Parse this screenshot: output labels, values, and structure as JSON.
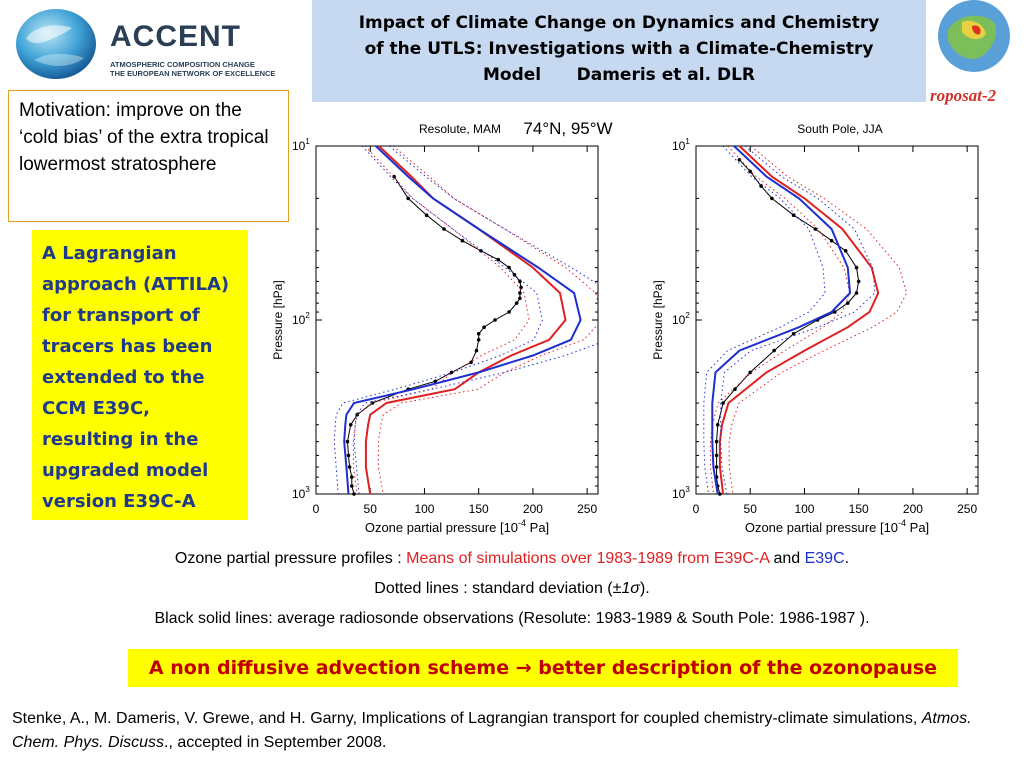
{
  "logo": {
    "brand": "ACCENT",
    "tagline1": "ATMOSPHERIC COMPOSITION CHANGE",
    "tagline2": "THE EUROPEAN NETWORK OF EXCELLENCE"
  },
  "title": {
    "line1": "Impact of Climate Change on Dynamics and Chemistry",
    "line2": "of the UTLS: Investigations with a Climate-Chemistry",
    "line3": "Model      Dameris et al. DLR"
  },
  "eurosat_label": "roposat-2",
  "motivation": "Motivation: improve on the ‘cold bias’ of the extra tropical lowermost stratosphere",
  "lagrange_text": "A Lagrangian approach (ATTILA) for transport of tracers has been extended to the CCM E39C, resulting in the upgraded model version E39C-A",
  "location_annotation": "74°N, 95°W",
  "colors": {
    "e39ca": "#e02020",
    "e39c": "#1d2fd0",
    "obs": "#000000",
    "highlight": "#ffff00",
    "title_bg": "#c6d9f1"
  },
  "chart_data": [
    {
      "type": "line",
      "title": "Resolute, MAM",
      "xlabel": "Ozone partial pressure [10",
      "xlabel_exp": "-4",
      "xlabel_unit": "Pa]",
      "ylabel": "Pressure [hPa]",
      "xlim": [
        0,
        260
      ],
      "ylim": [
        1000,
        10
      ],
      "yscale": "log",
      "xticks": [
        0,
        50,
        100,
        150,
        200,
        250
      ],
      "yticks": [
        {
          "base": "10",
          "exp": "1",
          "value": 10
        },
        {
          "base": "10",
          "exp": "2",
          "value": 100
        },
        {
          "base": "10",
          "exp": "3",
          "value": 1000
        }
      ],
      "series": [
        {
          "key": "obs",
          "pressure": [
            15,
            20,
            25,
            30,
            35,
            40,
            45,
            50,
            55,
            60,
            65,
            70,
            75,
            80,
            90,
            100,
            110,
            120,
            130,
            150,
            175,
            200,
            225,
            250,
            300,
            350,
            400,
            500,
            600,
            700,
            800,
            900,
            1000
          ],
          "values": [
            72,
            85,
            102,
            118,
            135,
            152,
            168,
            178,
            183,
            188,
            189,
            188,
            188,
            185,
            178,
            165,
            155,
            150,
            150,
            148,
            143,
            125,
            110,
            85,
            52,
            38,
            32,
            29,
            30,
            31,
            33,
            33,
            35
          ]
        },
        {
          "key": "e39ca",
          "pressure": [
            10,
            15,
            20,
            30,
            50,
            70,
            100,
            130,
            160,
            200,
            250,
            300,
            350,
            400,
            500,
            700,
            1000
          ],
          "values": [
            58,
            88,
            108,
            150,
            200,
            225,
            230,
            215,
            180,
            150,
            128,
            65,
            50,
            48,
            46,
            46,
            50
          ]
        },
        {
          "key": "e39c",
          "pressure": [
            10,
            15,
            20,
            30,
            50,
            70,
            100,
            130,
            160,
            200,
            250,
            300,
            350,
            400,
            500,
            700,
            1000
          ],
          "values": [
            55,
            85,
            108,
            150,
            205,
            238,
            244,
            235,
            200,
            150,
            90,
            35,
            28,
            27,
            26,
            28,
            30
          ]
        }
      ]
    },
    {
      "type": "line",
      "title": "South Pole, JJA",
      "xlabel": "Ozone partial pressure [10",
      "xlabel_exp": "-4",
      "xlabel_unit": "Pa]",
      "ylabel": "Pressure [hPa]",
      "xlim": [
        0,
        260
      ],
      "ylim": [
        1000,
        10
      ],
      "yscale": "log",
      "xticks": [
        0,
        50,
        100,
        150,
        200,
        250
      ],
      "yticks": [
        {
          "base": "10",
          "exp": "1",
          "value": 10
        },
        {
          "base": "10",
          "exp": "2",
          "value": 100
        },
        {
          "base": "10",
          "exp": "3",
          "value": 1000
        }
      ],
      "series": [
        {
          "key": "obs",
          "pressure": [
            12,
            14,
            17,
            20,
            25,
            30,
            35,
            40,
            50,
            60,
            70,
            80,
            90,
            100,
            120,
            150,
            200,
            250,
            300,
            400,
            500,
            600,
            700,
            800,
            900,
            1000
          ],
          "values": [
            40,
            50,
            60,
            70,
            90,
            110,
            125,
            138,
            148,
            150,
            148,
            140,
            128,
            112,
            90,
            72,
            50,
            36,
            25,
            20,
            19,
            19,
            19,
            19,
            20,
            22
          ]
        },
        {
          "key": "e39ca",
          "pressure": [
            10,
            15,
            20,
            30,
            50,
            70,
            90,
            110,
            150,
            200,
            300,
            400,
            500,
            700,
            1000
          ],
          "values": [
            40,
            70,
            100,
            135,
            162,
            168,
            160,
            140,
            100,
            65,
            30,
            24,
            22,
            22,
            25
          ]
        },
        {
          "key": "e39c",
          "pressure": [
            10,
            15,
            20,
            30,
            50,
            70,
            90,
            110,
            150,
            200,
            300,
            400,
            500,
            700,
            1000
          ],
          "values": [
            35,
            65,
            95,
            125,
            140,
            142,
            125,
            95,
            40,
            18,
            15,
            15,
            15,
            16,
            20
          ]
        }
      ]
    }
  ],
  "captions": {
    "line1_prefix": "Ozone partial pressure profiles : ",
    "line1_red": "Means of simulations over 1983-1989 from E39C-A",
    "line1_and": " and ",
    "line1_blue": "E39C",
    "line1_end": ".",
    "line2_a": "Dotted lines : standard deviation (",
    "line2_sigma": "±1σ",
    "line2_b": ").",
    "line3": "Black solid lines: average radiosonde observations  (Resolute: 1983-1989 & South Pole: 1986-1987 )."
  },
  "conclusion": "A non diffusive advection scheme →   better description of the ozonopause",
  "reference": {
    "part1": "Stenke, A., M. Dameris, V. Grewe, and H. Garny, Implications of Lagrangian transport for coupled chemistry-climate simulations, ",
    "journal": "Atmos. Chem. Phys. Discuss",
    "part2": "., accepted in September 2008."
  }
}
